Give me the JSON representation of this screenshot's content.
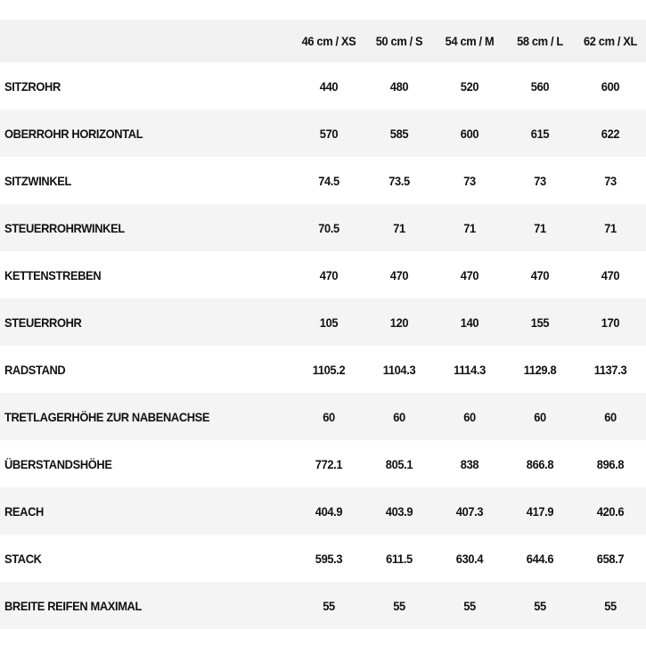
{
  "table": {
    "header": [
      "46 cm / XS",
      "50 cm / S",
      "54 cm / M",
      "58 cm / L",
      "62 cm / XL"
    ],
    "rows": [
      [
        "SITZROHR",
        "440",
        "480",
        "520",
        "560",
        "600"
      ],
      [
        "OBERROHR HORIZONTAL",
        "570",
        "585",
        "600",
        "615",
        "622"
      ],
      [
        "SITZWINKEL",
        "74.5",
        "73.5",
        "73",
        "73",
        "73"
      ],
      [
        "STEUERROHRWINKEL",
        "70.5",
        "71",
        "71",
        "71",
        "71"
      ],
      [
        "KETTENSTREBEN",
        "470",
        "470",
        "470",
        "470",
        "470"
      ],
      [
        "STEUERROHR",
        "105",
        "120",
        "140",
        "155",
        "170"
      ],
      [
        "RADSTAND",
        "1105.2",
        "1104.3",
        "1114.3",
        "1129.8",
        "1137.3"
      ],
      [
        "TRETLAGERHÖHE ZUR NABENACHSE",
        "60",
        "60",
        "60",
        "60",
        "60"
      ],
      [
        "ÜBERSTANDSHÖHE",
        "772.1",
        "805.1",
        "838",
        "866.8",
        "896.8"
      ],
      [
        "REACH",
        "404.9",
        "403.9",
        "407.3",
        "417.9",
        "420.6"
      ],
      [
        "STACK",
        "595.3",
        "611.5",
        "630.4",
        "644.6",
        "658.7"
      ],
      [
        "BREITE REIFEN MAXIMAL",
        "55",
        "55",
        "55",
        "55",
        "55"
      ]
    ]
  }
}
